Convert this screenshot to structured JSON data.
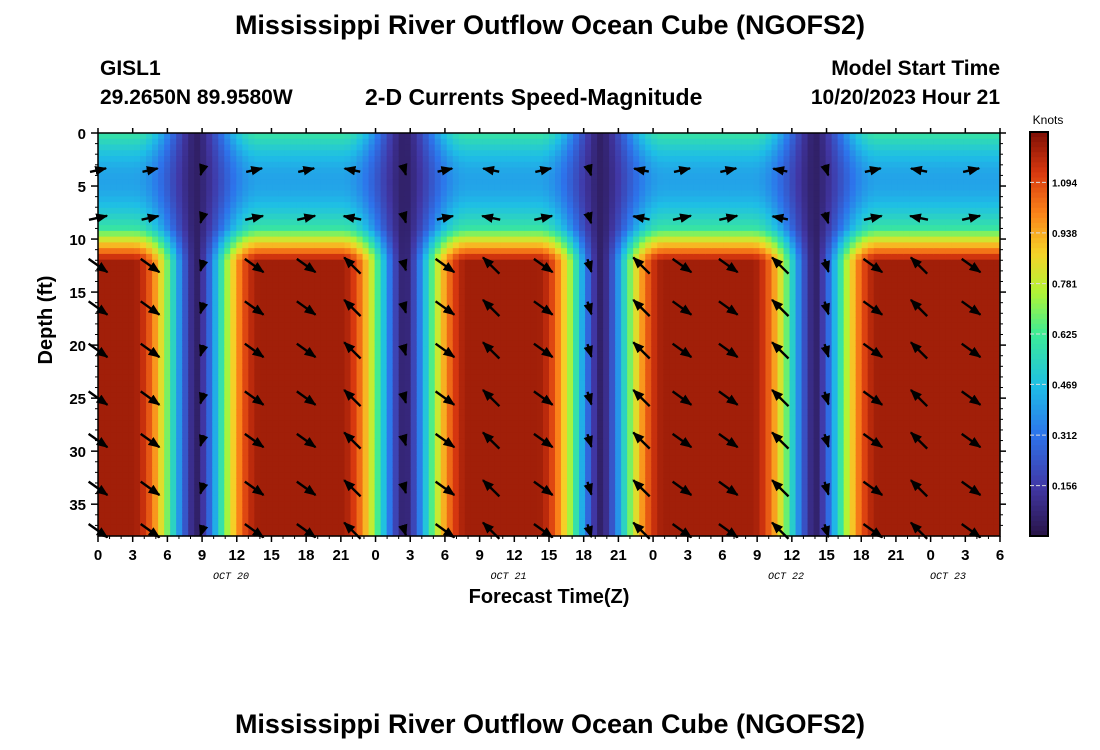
{
  "header": {
    "title": "Mississippi River Outflow Ocean Cube (NGOFS2)",
    "station": "GISL1",
    "coords": "29.2650N  89.9580W",
    "variable": "2-D Currents Speed-Magnitude",
    "model_start_label": "Model Start Time",
    "model_start_value": "10/20/2023 Hour 21"
  },
  "footer": {
    "title": "Mississippi River Outflow Ocean Cube (NGOFS2)"
  },
  "chart_data": {
    "type": "heatmap",
    "title": "2-D Currents Speed-Magnitude",
    "xlabel": "Forecast Time(Z)",
    "ylabel": "Depth (ft)",
    "x_range_hours": [
      0,
      78
    ],
    "ylim": [
      0,
      38
    ],
    "x_tick_labels": [
      "0",
      "3",
      "6",
      "9",
      "12",
      "15",
      "18",
      "21",
      "0",
      "3",
      "6",
      "9",
      "12",
      "15",
      "18",
      "21",
      "0",
      "3",
      "6",
      "9",
      "12",
      "15",
      "18",
      "21",
      "0",
      "3",
      "6"
    ],
    "y_ticks": [
      0,
      5,
      10,
      15,
      20,
      25,
      30,
      35
    ],
    "date_labels": [
      {
        "label": "OCT 20",
        "hour": 11.5
      },
      {
        "label": "OCT 21",
        "hour": 35.5
      },
      {
        "label": "OCT 22",
        "hour": 59.5
      },
      {
        "label": "OCT 23",
        "hour": 73.5
      }
    ],
    "colorbar": {
      "units": "Knots",
      "min": 0.0,
      "max": 1.25,
      "ticks": [
        1.094,
        0.938,
        0.781,
        0.625,
        0.469,
        0.312,
        0.156
      ]
    },
    "speed_minima_hours": [
      8.5,
      26.5,
      43.5,
      62.0
    ],
    "surface_speed_knots": 0.55,
    "subsurface_max_speed_knots": 1.15,
    "arrow_depths_ft": [
      3.5,
      8,
      12.5,
      16.5,
      20.5,
      25,
      29,
      33.5,
      37.5
    ],
    "arrow_hours": [
      0,
      4.5,
      9,
      13.5,
      18,
      22,
      26.5,
      30,
      34,
      38.5,
      42.5,
      47,
      50.5,
      54.5,
      59,
      63,
      67,
      71,
      75.5
    ],
    "arrow_colors": {
      "arrow": "#000000"
    }
  }
}
